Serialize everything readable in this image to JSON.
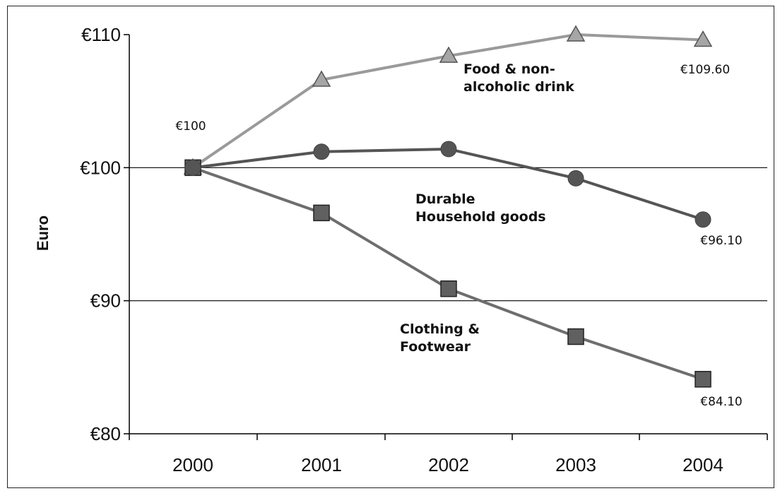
{
  "chart_data": {
    "type": "line",
    "ylabel": "Euro",
    "xlabel": "",
    "title": "",
    "categories": [
      "2000",
      "2001",
      "2002",
      "2003",
      "2004"
    ],
    "ylim": [
      80,
      110
    ],
    "yticks": [
      {
        "value": 80,
        "label": "€80"
      },
      {
        "value": 90,
        "label": "€90"
      },
      {
        "value": 100,
        "label": "€100"
      },
      {
        "value": 110,
        "label": "€110"
      }
    ],
    "gridlines": [
      90,
      100
    ],
    "series": [
      {
        "name": "Food & non-alcoholic drink",
        "label_lines": [
          "Food & non-",
          "alcoholic drink"
        ],
        "values": [
          100,
          106.6,
          108.4,
          110.0,
          109.6
        ],
        "marker": "triangle",
        "color": "#9a9a9a"
      },
      {
        "name": "Durable Household goods",
        "label_lines": [
          "Durable",
          "Household goods"
        ],
        "values": [
          100,
          101.2,
          101.4,
          99.2,
          96.1
        ],
        "marker": "circle",
        "color": "#555555"
      },
      {
        "name": "Clothing & Footwear",
        "label_lines": [
          "Clothing &",
          "Footwear"
        ],
        "values": [
          100,
          96.6,
          90.9,
          87.3,
          84.1
        ],
        "marker": "square",
        "color": "#6e6e6e"
      }
    ],
    "data_labels": [
      {
        "text": "€100",
        "series": null,
        "index": 0
      },
      {
        "text": "€109.60",
        "series": 0,
        "index": 4
      },
      {
        "text": "€96.10",
        "series": 1,
        "index": 4
      },
      {
        "text": "€84.10",
        "series": 2,
        "index": 4
      }
    ]
  }
}
